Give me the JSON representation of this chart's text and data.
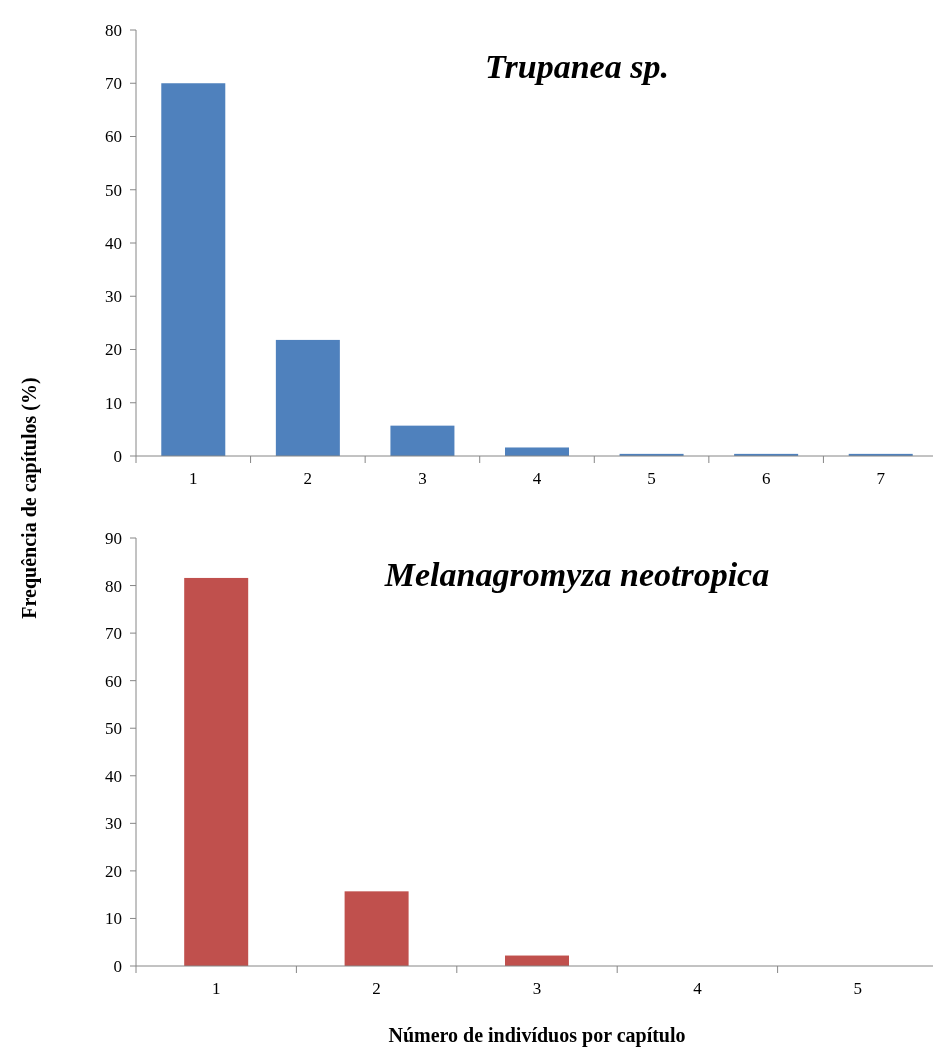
{
  "chart_data": [
    {
      "type": "bar",
      "title": "Trupanea sp.",
      "ylabel": "Frequência de capítulos (%)",
      "categories": [
        "1",
        "2",
        "3",
        "4",
        "5",
        "6",
        "7"
      ],
      "values": [
        70,
        21.8,
        5.7,
        1.6,
        0.4,
        0.4,
        0.4
      ],
      "color": "#4f81bd",
      "ylim": [
        0,
        80
      ],
      "yticks": [
        0,
        10,
        20,
        30,
        40,
        50,
        60,
        70,
        80
      ]
    },
    {
      "type": "bar",
      "title": "Melanagromyza neotropica",
      "xlabel": "Número de indivíduos por capítulo",
      "categories": [
        "1",
        "2",
        "3",
        "4",
        "5"
      ],
      "values": [
        81.6,
        15.7,
        2.2,
        0,
        0
      ],
      "color": "#c0504d",
      "ylim": [
        0,
        90
      ],
      "yticks": [
        0,
        10,
        20,
        30,
        40,
        50,
        60,
        70,
        80,
        90
      ]
    }
  ]
}
